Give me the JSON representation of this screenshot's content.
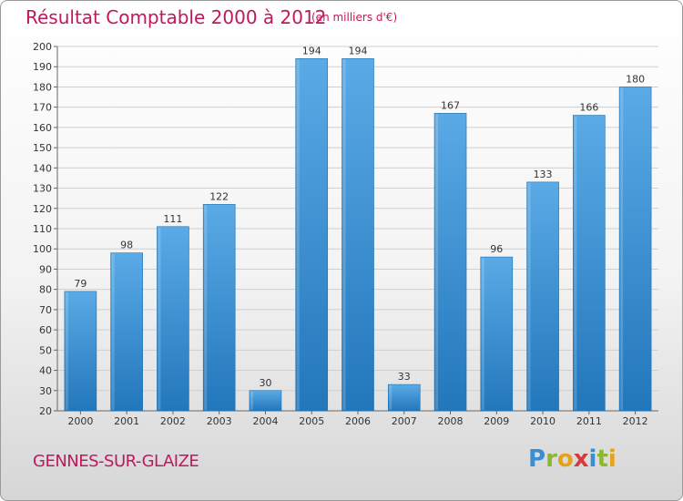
{
  "chart_data": {
    "type": "bar",
    "title": "Résultat Comptable 2000 à 2012",
    "subtitle": "(en milliers d'€)",
    "categories": [
      "2000",
      "2001",
      "2002",
      "2003",
      "2004",
      "2005",
      "2006",
      "2007",
      "2008",
      "2009",
      "2010",
      "2011",
      "2012"
    ],
    "values": [
      79,
      98,
      111,
      122,
      30,
      194,
      194,
      33,
      167,
      96,
      133,
      166,
      180
    ],
    "ylim": [
      20,
      200
    ],
    "ytick_step": 10,
    "grid": true,
    "xlabel": "",
    "ylabel": "",
    "bar_color_top": "#5aaae6",
    "bar_color_bottom": "#2277bb"
  },
  "footer": {
    "commune": "GENNES-SUR-GLAIZE",
    "logo_letters": [
      {
        "ch": "P",
        "color": "#3a8fd4"
      },
      {
        "ch": "r",
        "color": "#8ab833"
      },
      {
        "ch": "o",
        "color": "#e8a21a"
      },
      {
        "ch": "x",
        "color": "#d63a3a"
      },
      {
        "ch": "i",
        "color": "#3a8fd4"
      },
      {
        "ch": "t",
        "color": "#8ab833"
      },
      {
        "ch": "i",
        "color": "#e8a21a"
      }
    ]
  }
}
